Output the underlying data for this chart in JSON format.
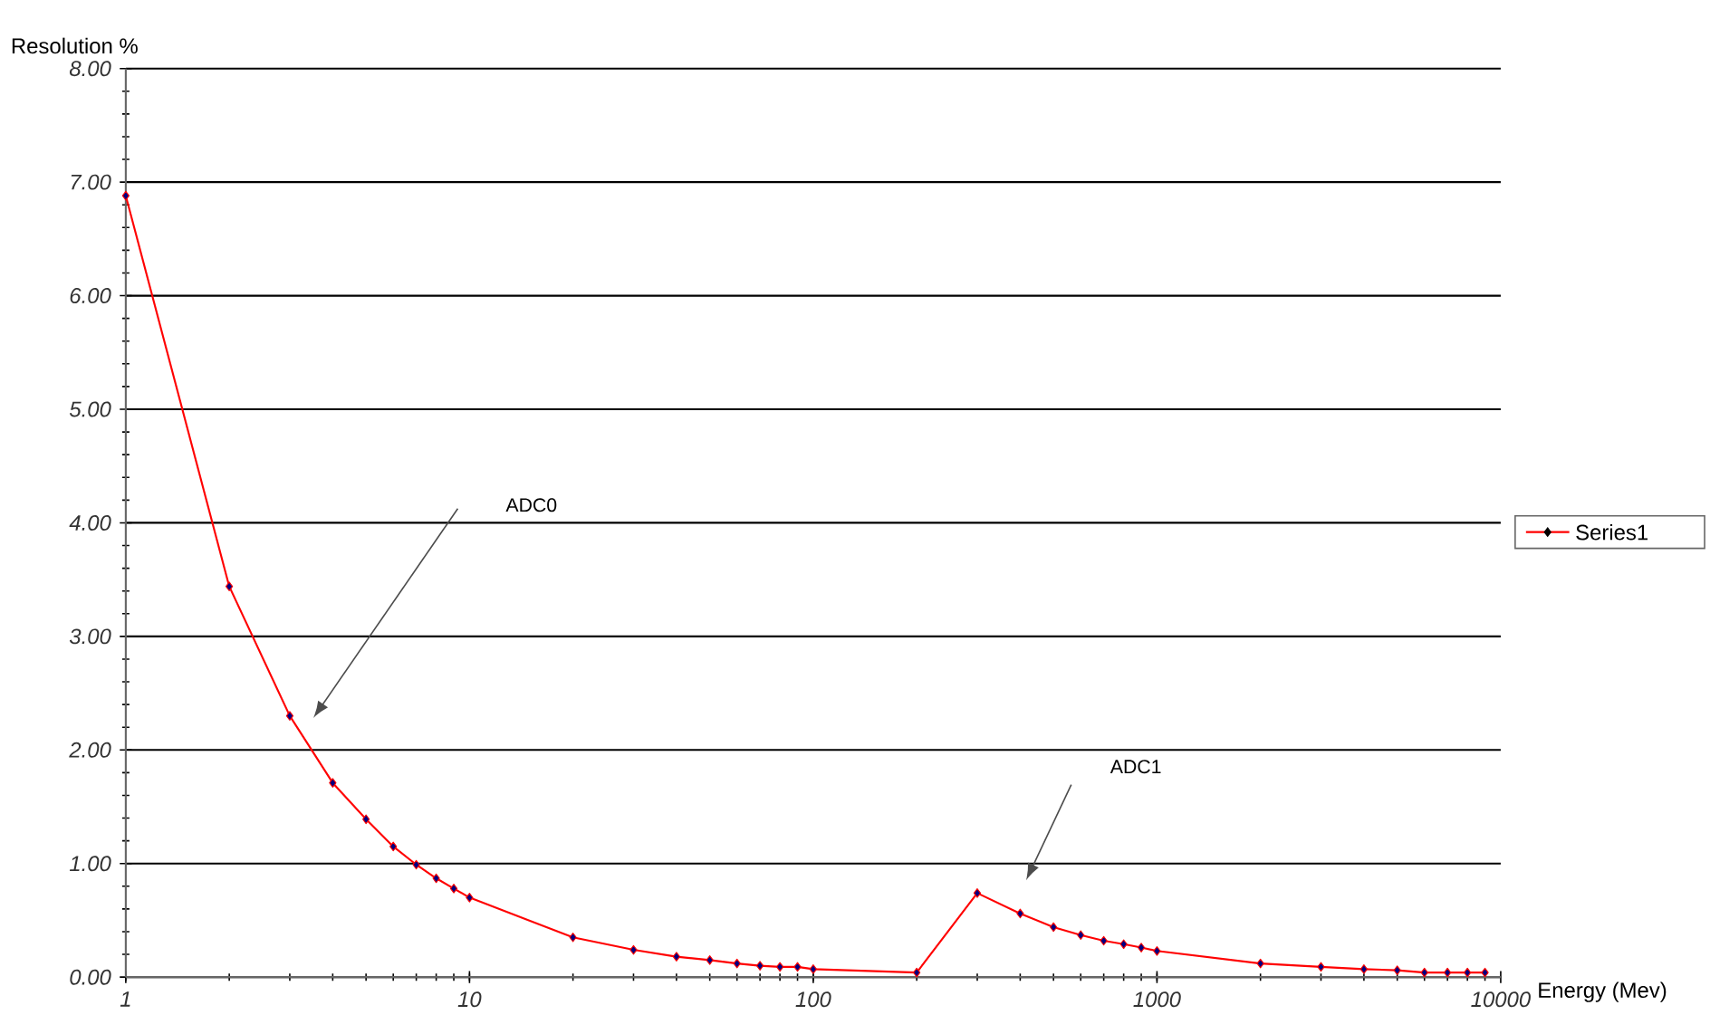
{
  "chart_data": {
    "type": "line",
    "xlabel": "Energy (Mev)",
    "ylabel": "Resolution %",
    "x": [
      1,
      2,
      3,
      4,
      5,
      6,
      7,
      8,
      9,
      10,
      20,
      30,
      40,
      50,
      60,
      70,
      80,
      90,
      100,
      200,
      300,
      400,
      500,
      600,
      700,
      800,
      900,
      1000,
      2000,
      3000,
      4000,
      5000,
      6000,
      7000,
      8000,
      9000
    ],
    "series": [
      {
        "name": "Series1",
        "color": "#ff0000",
        "values": [
          6.88,
          3.44,
          2.3,
          1.71,
          1.39,
          1.15,
          0.99,
          0.87,
          0.78,
          0.7,
          0.35,
          0.24,
          0.18,
          0.15,
          0.12,
          0.1,
          0.09,
          0.09,
          0.07,
          0.04,
          0.74,
          0.56,
          0.44,
          0.37,
          0.32,
          0.29,
          0.26,
          0.23,
          0.12,
          0.09,
          0.07,
          0.06,
          0.04,
          0.04,
          0.04,
          0.04
        ]
      }
    ],
    "log": "x",
    "xlim": [
      1,
      10000
    ],
    "xticks": [
      1,
      10,
      100,
      1000,
      10000
    ],
    "ylim": [
      0,
      8
    ],
    "yticks": [
      {
        "value": 0,
        "label": "0.00"
      },
      {
        "value": 1,
        "label": "1.00"
      },
      {
        "value": 2,
        "label": "2.00"
      },
      {
        "value": 3,
        "label": "3.00"
      },
      {
        "value": 4,
        "label": "4.00"
      },
      {
        "value": 5,
        "label": "5.00"
      },
      {
        "value": 6,
        "label": "6.00"
      },
      {
        "value": 7,
        "label": "7.00"
      },
      {
        "value": 8,
        "label": "8.00"
      }
    ],
    "grid": "y",
    "legend": "right",
    "marker": "diamond",
    "line_style": "solid",
    "annotations": [
      "ADC0",
      "ADC1"
    ]
  }
}
